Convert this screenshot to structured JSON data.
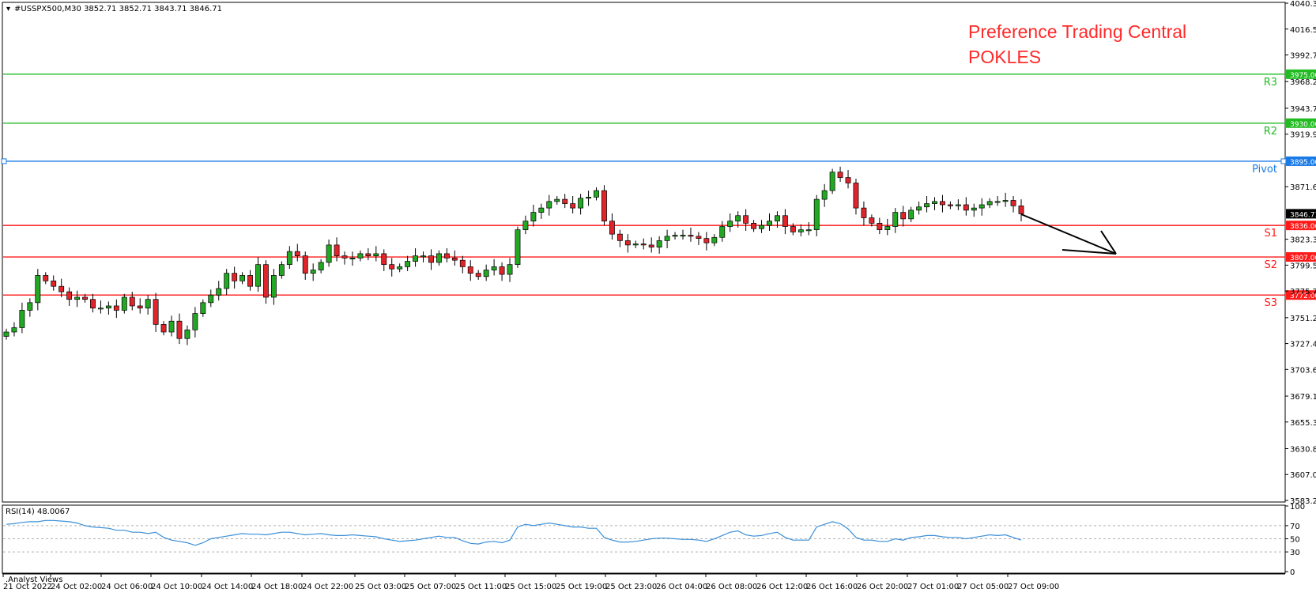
{
  "header": {
    "symbol_info": "#USSPX500,M30  3852.71 3852.71 3843.71 3846.71"
  },
  "watermark": {
    "line1": "Preference Trading Central",
    "line2": "POKLES"
  },
  "colors": {
    "bull": "#22a822",
    "bear": "#e0242a",
    "resistance": "#22bb22",
    "support": "#ff1a1a",
    "pivot": "#1a7ae6",
    "rsi": "#3a8fd8",
    "current_price_badge": "#000000"
  },
  "rsi_panel": {
    "label": "RSI(14) 48.0067",
    "levels_shown": [
      70,
      50,
      30
    ],
    "ticks": [
      "100",
      "70",
      "50",
      "30",
      "0"
    ]
  },
  "footer": {
    "label": ".Analyst Views"
  },
  "chart_data": {
    "type": "candlestick",
    "symbol": "#USSPX500",
    "timeframe": "M30",
    "ohlc_header": {
      "open": 3852.71,
      "high": 3852.71,
      "low": 3843.71,
      "close": 3846.71
    },
    "y_ticks": [
      "4040.30",
      "4016.50",
      "3992.70",
      "3968.20",
      "3943.70",
      "3919.90",
      "3871.60",
      "3823.30",
      "3799.50",
      "3775.70",
      "3751.20",
      "3727.40",
      "3703.60",
      "3679.10",
      "3655.30",
      "3630.80",
      "3607.00",
      "3583.20"
    ],
    "ylim": [
      3583.2,
      4040.3
    ],
    "x_ticks": [
      "21 Oct 2022",
      "24 Oct 02:00",
      "24 Oct 06:00",
      "24 Oct 10:00",
      "24 Oct 14:00",
      "24 Oct 18:00",
      "24 Oct 22:00",
      "25 Oct 03:00",
      "25 Oct 07:00",
      "25 Oct 11:00",
      "25 Oct 15:00",
      "25 Oct 19:00",
      "25 Oct 23:00",
      "26 Oct 04:00",
      "26 Oct 08:00",
      "26 Oct 12:00",
      "26 Oct 16:00",
      "26 Oct 20:00",
      "27 Oct 01:00",
      "27 Oct 05:00",
      "27 Oct 09:00"
    ],
    "levels": [
      {
        "name": "R3",
        "value": 3975.0,
        "value_label": "3975.00",
        "kind": "resistance"
      },
      {
        "name": "R2",
        "value": 3930.0,
        "value_label": "3930.00",
        "kind": "resistance"
      },
      {
        "name": "Pivot",
        "value": 3895.0,
        "value_label": "3895.00",
        "kind": "pivot"
      },
      {
        "name": "S1",
        "value": 3836.0,
        "value_label": "3836.00",
        "kind": "support"
      },
      {
        "name": "S2",
        "value": 3807.0,
        "value_label": "3807.00",
        "kind": "support"
      },
      {
        "name": "S3",
        "value": 3772.0,
        "value_label": "3772.00",
        "kind": "support"
      }
    ],
    "current_price": {
      "value": 3846.71,
      "label": "3846.71"
    },
    "closes": [
      3738,
      3742,
      3758,
      3765,
      3790,
      3785,
      3780,
      3775,
      3768,
      3770,
      3768,
      3760,
      3760,
      3762,
      3758,
      3770,
      3762,
      3760,
      3768,
      3745,
      3738,
      3748,
      3732,
      3740,
      3755,
      3765,
      3772,
      3778,
      3792,
      3785,
      3790,
      3780,
      3800,
      3770,
      3790,
      3800,
      3812,
      3808,
      3792,
      3795,
      3802,
      3818,
      3808,
      3806,
      3806,
      3810,
      3808,
      3810,
      3800,
      3796,
      3798,
      3803,
      3808,
      3808,
      3802,
      3810,
      3806,
      3804,
      3798,
      3792,
      3789,
      3795,
      3798,
      3791,
      3800,
      3832,
      3840,
      3848,
      3852,
      3858,
      3860,
      3856,
      3852,
      3861,
      3862,
      3868,
      3840,
      3828,
      3822,
      3818,
      3819,
      3818,
      3816,
      3822,
      3826,
      3827,
      3827,
      3826,
      3824,
      3820,
      3825,
      3835,
      3840,
      3845,
      3838,
      3833,
      3836,
      3840,
      3845,
      3835,
      3830,
      3832,
      3832,
      3860,
      3868,
      3885,
      3880,
      3875,
      3852,
      3843,
      3838,
      3832,
      3835,
      3848,
      3842,
      3850,
      3853,
      3856,
      3858,
      3855,
      3854,
      3855,
      3850,
      3852,
      3855,
      3858,
      3858,
      3859,
      3854,
      3846.71
    ],
    "rsi": [
      72,
      73,
      75,
      76,
      76,
      78,
      78,
      77,
      76,
      74,
      70,
      68,
      67,
      66,
      63,
      63,
      60,
      60,
      58,
      60,
      52,
      48,
      46,
      44,
      40,
      44,
      50,
      52,
      54,
      56,
      58,
      57,
      57,
      56,
      58,
      60,
      60,
      58,
      56,
      57,
      58,
      56,
      55,
      55,
      56,
      55,
      54,
      53,
      50,
      48,
      46,
      47,
      48,
      50,
      52,
      54,
      52,
      52,
      47,
      43,
      42,
      45,
      46,
      44,
      48,
      68,
      72,
      70,
      72,
      74,
      72,
      70,
      68,
      68,
      66,
      66,
      52,
      48,
      45,
      45,
      46,
      48,
      50,
      51,
      51,
      50,
      49,
      49,
      48,
      46,
      50,
      55,
      60,
      62,
      56,
      54,
      55,
      58,
      60,
      52,
      48,
      48,
      48,
      68,
      72,
      76,
      73,
      65,
      52,
      48,
      48,
      46,
      46,
      50,
      48,
      52,
      53,
      55,
      55,
      53,
      52,
      52,
      50,
      52,
      54,
      56,
      55,
      56,
      52,
      48
    ]
  }
}
